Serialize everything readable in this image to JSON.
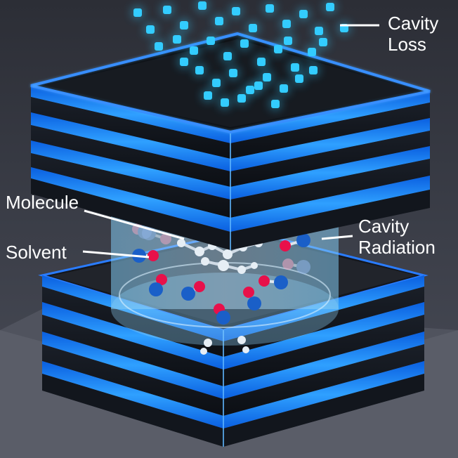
{
  "labels": {
    "cavity_loss": [
      "Cavity",
      "Loss"
    ],
    "molecule": "Molecule",
    "solvent": "Solvent",
    "cavity_radiation": [
      "Cavity",
      "Radiation"
    ]
  },
  "colors": {
    "background": "#3a3c44",
    "mirror_glow": "#1e8cff",
    "mirror_dark": "#101418",
    "photon": "#33ccff",
    "solvent_oxygen": "#e8104a",
    "solvent_carbon": "#1a5fc8",
    "molecule": "#e6eef5",
    "label_text": "#ffffff"
  },
  "legend_icons": [
    "photon-icon",
    "solvent-molecule-icon",
    "target-molecule-icon"
  ]
}
